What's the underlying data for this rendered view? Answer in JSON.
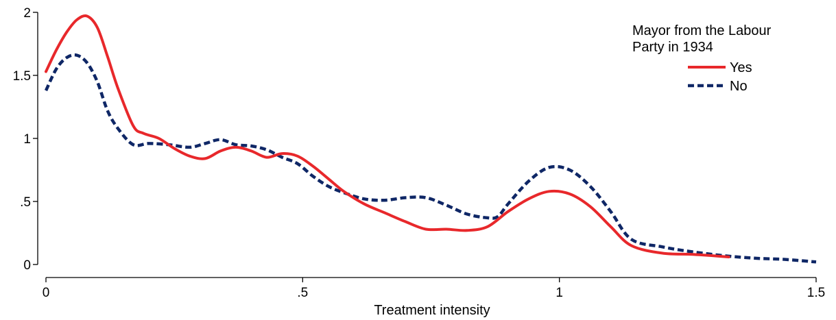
{
  "chart_data": {
    "type": "line",
    "xlabel": "Treatment intensity",
    "ylabel": "",
    "xlim": [
      0,
      1.5
    ],
    "ylim": [
      0,
      2
    ],
    "x_ticks": [
      {
        "value": 0,
        "label": "0"
      },
      {
        "value": 0.5,
        "label": ".5"
      },
      {
        "value": 1,
        "label": "1"
      },
      {
        "value": 1.5,
        "label": "1.5"
      }
    ],
    "y_ticks": [
      {
        "value": 0,
        "label": "0"
      },
      {
        "value": 0.5,
        "label": ".5"
      },
      {
        "value": 1,
        "label": "1"
      },
      {
        "value": 1.5,
        "label": "1.5"
      },
      {
        "value": 2,
        "label": "2"
      }
    ],
    "grid": false,
    "legend": {
      "title_lines": [
        "Mayor from the Labour",
        "Party in 1934"
      ],
      "placement": "top-right"
    },
    "series": [
      {
        "name": "Yes",
        "color": "#e8282b",
        "dash": "solid",
        "x": [
          0,
          0.02,
          0.04,
          0.06,
          0.08,
          0.1,
          0.12,
          0.14,
          0.17,
          0.19,
          0.22,
          0.25,
          0.28,
          0.31,
          0.34,
          0.37,
          0.4,
          0.43,
          0.46,
          0.49,
          0.52,
          0.55,
          0.58,
          0.62,
          0.66,
          0.7,
          0.74,
          0.78,
          0.82,
          0.86,
          0.9,
          0.94,
          0.98,
          1.02,
          1.06,
          1.1,
          1.14,
          1.2,
          1.26,
          1.33
        ],
        "y": [
          1.53,
          1.7,
          1.84,
          1.94,
          1.97,
          1.88,
          1.65,
          1.4,
          1.1,
          1.04,
          1.0,
          0.92,
          0.86,
          0.84,
          0.9,
          0.93,
          0.9,
          0.85,
          0.88,
          0.86,
          0.78,
          0.68,
          0.58,
          0.48,
          0.41,
          0.34,
          0.28,
          0.28,
          0.27,
          0.3,
          0.42,
          0.52,
          0.58,
          0.56,
          0.46,
          0.3,
          0.15,
          0.09,
          0.08,
          0.06
        ]
      },
      {
        "name": "No",
        "color": "#0f2766",
        "dash": "dashed",
        "x": [
          0,
          0.02,
          0.04,
          0.06,
          0.08,
          0.1,
          0.12,
          0.14,
          0.17,
          0.2,
          0.24,
          0.28,
          0.31,
          0.34,
          0.37,
          0.4,
          0.43,
          0.46,
          0.49,
          0.52,
          0.55,
          0.58,
          0.62,
          0.66,
          0.7,
          0.74,
          0.78,
          0.82,
          0.86,
          0.88,
          0.9,
          0.94,
          0.98,
          1.02,
          1.06,
          1.1,
          1.14,
          1.2,
          1.26,
          1.32,
          1.38,
          1.44,
          1.5
        ],
        "y": [
          1.38,
          1.55,
          1.64,
          1.66,
          1.6,
          1.45,
          1.22,
          1.08,
          0.95,
          0.96,
          0.95,
          0.93,
          0.96,
          0.99,
          0.95,
          0.94,
          0.91,
          0.85,
          0.8,
          0.7,
          0.62,
          0.57,
          0.52,
          0.51,
          0.53,
          0.53,
          0.47,
          0.4,
          0.37,
          0.38,
          0.48,
          0.66,
          0.77,
          0.75,
          0.62,
          0.42,
          0.2,
          0.14,
          0.1,
          0.07,
          0.05,
          0.04,
          0.02
        ]
      }
    ]
  }
}
